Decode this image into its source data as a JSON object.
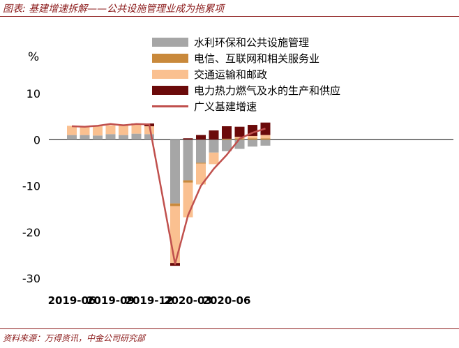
{
  "header": {
    "title": "图表: 基建增速拆解——公共设施管理业成为拖累项",
    "source": "资料来源：万得资讯，中金公司研究部"
  },
  "chart_data": {
    "type": "bar",
    "stacked": true,
    "unit": "%",
    "title": "",
    "xlabel": "",
    "ylabel": "%",
    "ylim": [
      -30,
      10
    ],
    "yticks": [
      10,
      0,
      -10,
      -20,
      -30
    ],
    "x": [
      "2019-06",
      "2019-07",
      "2019-08",
      "2019-09",
      "2019-10",
      "2019-11",
      "2019-12",
      "2020-02",
      "2020-03",
      "2020-04",
      "2020-05",
      "2020-06",
      "2020-07",
      "2020-08",
      "2020-09"
    ],
    "xtick_labels": [
      "2019-06",
      "2019-09",
      "2019-12",
      "2020-03",
      "2020-06"
    ],
    "series": [
      {
        "name": "水利环保和公共设施管理",
        "type": "bar",
        "color": "#a6a6a6",
        "values": [
          1.0,
          1.0,
          0.9,
          1.2,
          1.0,
          1.3,
          1.2,
          -13.8,
          -8.8,
          -5.0,
          -2.8,
          -2.5,
          -2.0,
          -1.5,
          -1.3
        ]
      },
      {
        "name": "电信、互联网和相关服务业",
        "type": "bar",
        "color": "#c9893b",
        "values": [
          0.0,
          0.0,
          0.0,
          0.0,
          0.0,
          0.0,
          0.0,
          -0.6,
          -0.5,
          -0.2,
          0.0,
          0.2,
          0.3,
          0.3,
          0.3
        ]
      },
      {
        "name": "交通运输和邮政",
        "type": "bar",
        "color": "#fac090",
        "values": [
          2.0,
          1.8,
          2.2,
          1.9,
          2.2,
          2.0,
          1.7,
          -12.3,
          -7.5,
          -4.5,
          -2.5,
          0.0,
          0.3,
          0.5,
          0.7
        ]
      },
      {
        "name": "电力热力燃气及水的生产和供应",
        "type": "bar",
        "color": "#6b0a0a",
        "values": [
          0.0,
          0.0,
          0.0,
          0.0,
          0.1,
          0.2,
          0.6,
          -0.6,
          0.3,
          1.0,
          2.0,
          2.7,
          2.2,
          2.4,
          2.7
        ]
      },
      {
        "name": "广义基建增速",
        "type": "line",
        "color": "#c0504d",
        "values": [
          2.9,
          2.8,
          3.0,
          3.4,
          3.1,
          3.4,
          3.3,
          -26.9,
          -16.4,
          -10.0,
          -6.3,
          -3.3,
          0.2,
          1.5,
          2.4
        ]
      }
    ]
  }
}
